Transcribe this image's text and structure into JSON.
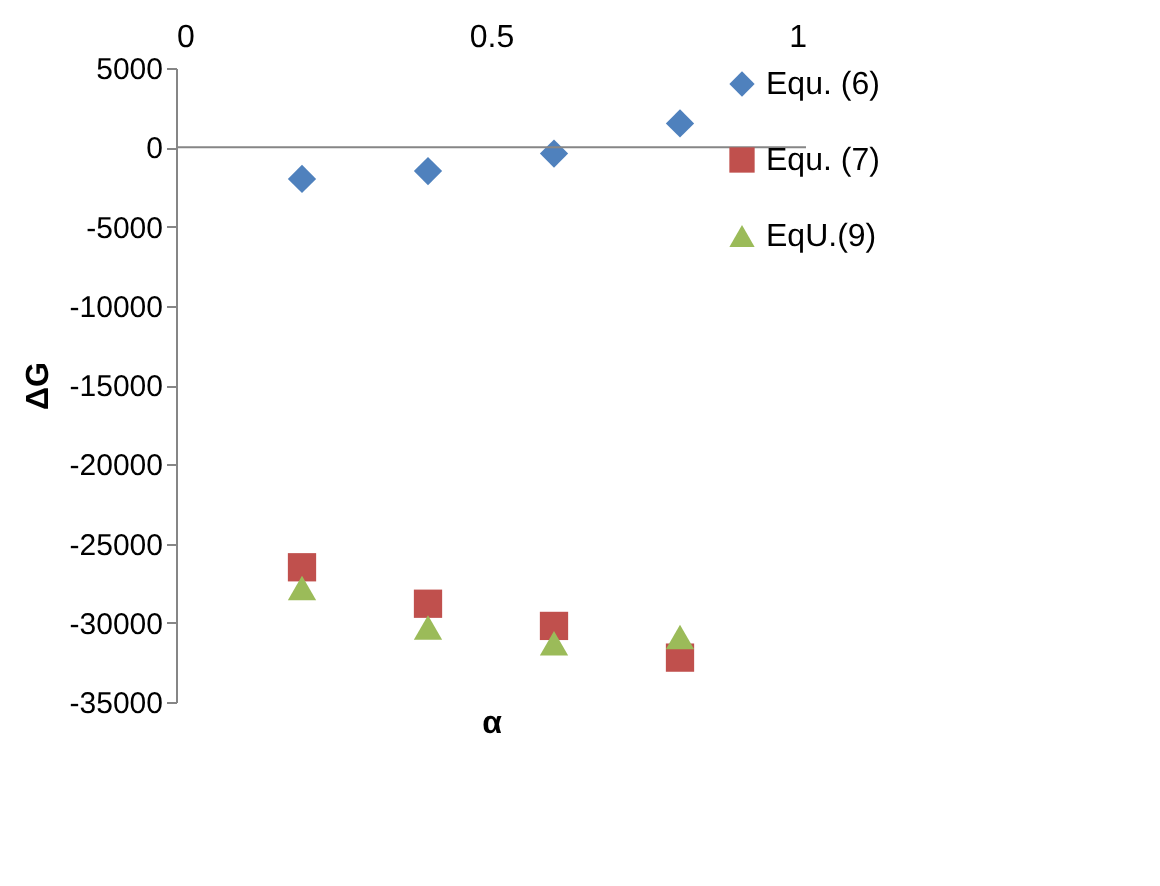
{
  "chart_data": {
    "type": "scatter",
    "xlabel": "α",
    "ylabel": "ΔG",
    "xlim": [
      0,
      1
    ],
    "xticks": [
      0,
      0.5,
      1
    ],
    "ylim": [
      -35000,
      5000
    ],
    "yticks": [
      -35000,
      -30000,
      -25000,
      -20000,
      -15000,
      -10000,
      -5000,
      0,
      5000
    ],
    "x": [
      0.2,
      0.4,
      0.6,
      0.8
    ],
    "legend": "right",
    "grid": false,
    "ref_lines": [
      {
        "axis": "y",
        "value": 0,
        "color": "#868686"
      }
    ],
    "series": [
      {
        "name": "Equ. (6)",
        "color": "#4f81bd",
        "marker": "diamond",
        "values": [
          -2000,
          -1500,
          -400,
          1500
        ]
      },
      {
        "name": "Equ. (7)",
        "color": "#c0504d",
        "marker": "square",
        "values": [
          -26500,
          -28800,
          -30200,
          -32200
        ]
      },
      {
        "name": "EqU.(9)",
        "color": "#9bbb59",
        "marker": "triangle",
        "values": [
          -27800,
          -30300,
          -31300,
          -30900
        ]
      }
    ]
  }
}
